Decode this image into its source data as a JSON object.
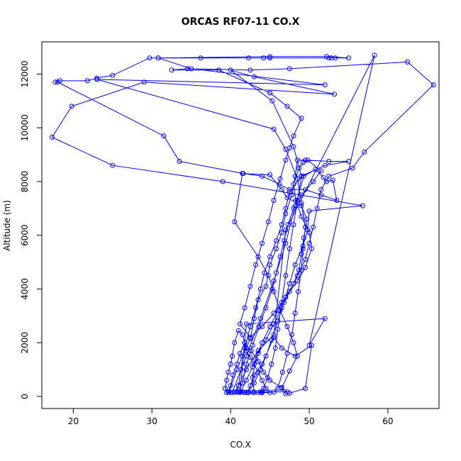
{
  "chart_data": {
    "type": "scatter",
    "title": "ORCAS RF07-11 CO.X",
    "xlabel": "CO.X",
    "ylabel": "Altitude (m)",
    "xlim": [
      16,
      66.5
    ],
    "ylim": [
      -450,
      13200
    ],
    "xticks": [
      20,
      30,
      40,
      50,
      60
    ],
    "yticks": [
      0,
      2000,
      4000,
      6000,
      8000,
      10000,
      12000
    ],
    "grid": false,
    "color": "#0000ff",
    "series": [
      {
        "points": [
          [
            43.5,
            150
          ],
          [
            42.8,
            160
          ],
          [
            42.0,
            150
          ],
          [
            41.5,
            170
          ],
          [
            40.0,
            150
          ],
          [
            39.5,
            140
          ],
          [
            40.5,
            160
          ],
          [
            41.0,
            170
          ],
          [
            42.3,
            150
          ],
          [
            43.0,
            160
          ],
          [
            44.0,
            140
          ],
          [
            45.0,
            150
          ],
          [
            44.5,
            300
          ],
          [
            44.0,
            600
          ],
          [
            43.5,
            900
          ],
          [
            43.0,
            1200
          ],
          [
            42.5,
            1450
          ],
          [
            42.0,
            1700
          ],
          [
            41.8,
            2000
          ],
          [
            41.5,
            2300
          ],
          [
            41.0,
            2450
          ],
          [
            40.5,
            2000
          ],
          [
            40.2,
            1500
          ],
          [
            40.0,
            1200
          ],
          [
            39.7,
            900
          ],
          [
            39.5,
            600
          ],
          [
            39.3,
            300
          ],
          [
            39.8,
            170
          ],
          [
            40.8,
            1000
          ],
          [
            41.5,
            1500
          ],
          [
            42.0,
            1800
          ],
          [
            42.5,
            2150
          ],
          [
            43.0,
            2900
          ],
          [
            43.5,
            3600
          ],
          [
            44.5,
            4100
          ],
          [
            45.0,
            4900
          ],
          [
            45.8,
            5500
          ],
          [
            46.5,
            6100
          ],
          [
            47.0,
            6800
          ],
          [
            47.8,
            7500
          ],
          [
            48.2,
            8200
          ],
          [
            48.5,
            8800
          ],
          [
            49.5,
            8800
          ],
          [
            52.5,
            8750
          ],
          [
            55.0,
            8750
          ],
          [
            52.0,
            8600
          ],
          [
            49.0,
            8200
          ],
          [
            47.5,
            7600
          ],
          [
            47.0,
            7000
          ],
          [
            46.5,
            6400
          ],
          [
            45.8,
            5800
          ],
          [
            45.0,
            5200
          ],
          [
            44.3,
            4600
          ],
          [
            43.8,
            4000
          ],
          [
            43.2,
            3300
          ],
          [
            42.5,
            2600
          ],
          [
            41.8,
            1800
          ],
          [
            41.3,
            1000
          ],
          [
            41.0,
            400
          ],
          [
            40.8,
            170
          ],
          [
            41.3,
            180
          ],
          [
            42.0,
            600
          ],
          [
            42.8,
            1100
          ],
          [
            43.5,
            1600
          ],
          [
            44.5,
            2100
          ],
          [
            45.5,
            2700
          ],
          [
            46.5,
            3300
          ],
          [
            47.5,
            3900
          ],
          [
            48.5,
            4500
          ],
          [
            49.5,
            5100
          ],
          [
            50.0,
            5700
          ],
          [
            50.5,
            6300
          ],
          [
            51.0,
            7000
          ],
          [
            51.5,
            7700
          ],
          [
            52.5,
            8200
          ],
          [
            55.5,
            8500
          ],
          [
            57.0,
            9100
          ],
          [
            65.8,
            11600
          ],
          [
            62.5,
            12450
          ],
          [
            47.5,
            12200
          ],
          [
            42.5,
            12150
          ],
          [
            34.5,
            12200
          ],
          [
            32.5,
            12150
          ],
          [
            38.5,
            12150
          ],
          [
            45.0,
            11300
          ],
          [
            47.2,
            10800
          ],
          [
            49.0,
            10350
          ],
          [
            48.0,
            9700
          ],
          [
            47.5,
            9250
          ],
          [
            47.0,
            8800
          ],
          [
            46.3,
            8100
          ],
          [
            45.5,
            7300
          ],
          [
            44.8,
            6500
          ],
          [
            44.0,
            5700
          ],
          [
            43.2,
            4900
          ],
          [
            42.5,
            4100
          ],
          [
            41.8,
            3300
          ],
          [
            41.2,
            2700
          ],
          [
            42.5,
            2200
          ],
          [
            44.0,
            2600
          ],
          [
            45.5,
            3100
          ],
          [
            47.0,
            3700
          ],
          [
            48.5,
            4300
          ],
          [
            49.5,
            4800
          ],
          [
            50.3,
            5500
          ],
          [
            50.0,
            6100
          ],
          [
            49.0,
            6700
          ],
          [
            48.3,
            7300
          ],
          [
            48.0,
            7900
          ],
          [
            48.7,
            8500
          ],
          [
            49.2,
            8700
          ],
          [
            49.8,
            8800
          ],
          [
            51.5,
            8400
          ],
          [
            50.5,
            8000
          ],
          [
            49.0,
            7500
          ],
          [
            48.0,
            7000
          ],
          [
            47.3,
            6400
          ],
          [
            46.8,
            5800
          ],
          [
            46.3,
            5200
          ],
          [
            45.8,
            4600
          ],
          [
            45.3,
            4000
          ],
          [
            44.5,
            3300
          ],
          [
            43.6,
            2600
          ],
          [
            42.8,
            1900
          ],
          [
            42.0,
            1200
          ],
          [
            41.5,
            500
          ],
          [
            41.0,
            160
          ],
          [
            42.2,
            160
          ],
          [
            43.0,
            500
          ],
          [
            43.8,
            1000
          ],
          [
            44.5,
            1500
          ],
          [
            45.2,
            2100
          ],
          [
            46.0,
            2800
          ],
          [
            46.8,
            3500
          ],
          [
            47.5,
            4200
          ],
          [
            48.2,
            4900
          ],
          [
            49.2,
            5600
          ],
          [
            49.8,
            6200
          ],
          [
            50.0,
            6900
          ],
          [
            56.8,
            7100
          ],
          [
            39.0,
            8000
          ],
          [
            25.0,
            8600
          ],
          [
            17.3,
            9650
          ],
          [
            19.8,
            10800
          ],
          [
            29.0,
            11700
          ],
          [
            53.2,
            11250
          ],
          [
            43.0,
            11900
          ],
          [
            40.0,
            12150
          ],
          [
            45.3,
            11000
          ],
          [
            48.0,
            9300
          ],
          [
            49.0,
            8200
          ],
          [
            48.5,
            7300
          ],
          [
            48.0,
            6400
          ],
          [
            47.5,
            5500
          ],
          [
            47.0,
            4500
          ],
          [
            46.5,
            3500
          ],
          [
            46.0,
            2500
          ],
          [
            45.7,
            1800
          ],
          [
            45.2,
            1200
          ],
          [
            44.7,
            700
          ],
          [
            44.2,
            300
          ],
          [
            43.8,
            160
          ],
          [
            43.0,
            150
          ],
          [
            42.8,
            700
          ],
          [
            43.2,
            1400
          ],
          [
            44.0,
            2000
          ],
          [
            45.0,
            2600
          ],
          [
            46.0,
            3200
          ],
          [
            47.0,
            3700
          ],
          [
            48.0,
            4200
          ],
          [
            48.7,
            4700
          ],
          [
            49.0,
            5300
          ],
          [
            49.3,
            5900
          ],
          [
            49.7,
            6600
          ],
          [
            49.0,
            7100
          ],
          [
            47.2,
            7400
          ],
          [
            46.5,
            7700
          ],
          [
            45.0,
            8250
          ],
          [
            41.5,
            8300
          ],
          [
            40.5,
            6500
          ],
          [
            43.5,
            5200
          ],
          [
            44.8,
            4500
          ],
          [
            45.5,
            3900
          ],
          [
            46.3,
            3200
          ],
          [
            47.2,
            2600
          ],
          [
            48.0,
            2000
          ],
          [
            48.5,
            1500
          ],
          [
            47.5,
            950
          ],
          [
            46.5,
            300
          ],
          [
            47.0,
            100
          ],
          [
            47.5,
            120
          ],
          [
            49.5,
            300
          ],
          [
            50.3,
            1900
          ],
          [
            48.2,
            1500
          ],
          [
            46.5,
            1800
          ],
          [
            45.5,
            2200
          ],
          [
            44.0,
            1200
          ],
          [
            43.0,
            800
          ],
          [
            42.5,
            400
          ],
          [
            42.2,
            150
          ],
          [
            44.0,
            170
          ],
          [
            47.2,
            170
          ],
          [
            46.5,
            330
          ],
          [
            45.0,
            600
          ],
          [
            44.2,
            900
          ],
          [
            43.5,
            1300
          ],
          [
            42.6,
            1700
          ],
          [
            41.8,
            2000
          ],
          [
            41.2,
            1600
          ],
          [
            40.8,
            1200
          ],
          [
            40.3,
            800
          ],
          [
            40.0,
            400
          ],
          [
            39.7,
            170
          ],
          [
            40.2,
            150
          ],
          [
            42.0,
            1500
          ],
          [
            43.8,
            2900
          ],
          [
            45.5,
            4300
          ],
          [
            47.0,
            5700
          ],
          [
            48.2,
            7100
          ],
          [
            49.3,
            8200
          ],
          [
            50.8,
            8450
          ],
          [
            51.8,
            8150
          ],
          [
            52.2,
            8000
          ],
          [
            53.0,
            8050
          ],
          [
            53.5,
            7300
          ],
          [
            51.5,
            7500
          ],
          [
            49.5,
            7700
          ],
          [
            47.5,
            7700
          ],
          [
            46.2,
            7900
          ],
          [
            44.0,
            8200
          ],
          [
            41.6,
            8300
          ],
          [
            33.5,
            8750
          ],
          [
            31.5,
            9700
          ],
          [
            18.0,
            11700
          ],
          [
            17.7,
            11700
          ],
          [
            18.3,
            11750
          ],
          [
            21.8,
            11750
          ],
          [
            23.0,
            11850
          ],
          [
            25.0,
            11950
          ],
          [
            29.7,
            12600
          ],
          [
            30.8,
            12600
          ],
          [
            36.2,
            12600
          ],
          [
            42.3,
            12600
          ],
          [
            44.2,
            12600
          ],
          [
            45.0,
            12600
          ],
          [
            52.5,
            12600
          ],
          [
            52.8,
            12600
          ],
          [
            53.3,
            12600
          ],
          [
            55.0,
            12600
          ],
          [
            52.2,
            12650
          ],
          [
            45.0,
            12650
          ],
          [
            30.8,
            12600
          ],
          [
            35.0,
            12200
          ],
          [
            52.0,
            11600
          ],
          [
            23.0,
            11800
          ],
          [
            45.5,
            9950
          ],
          [
            47.0,
            9200
          ],
          [
            48.5,
            8100
          ],
          [
            49.0,
            7200
          ],
          [
            49.5,
            6300
          ],
          [
            49.2,
            5500
          ],
          [
            49.0,
            4700
          ],
          [
            48.6,
            3900
          ],
          [
            48.2,
            3100
          ],
          [
            47.8,
            2300
          ],
          [
            47.2,
            1600
          ],
          [
            46.6,
            900
          ],
          [
            46.0,
            300
          ],
          [
            45.5,
            160
          ],
          [
            41.7,
            150
          ],
          [
            41.2,
            150
          ],
          [
            42.0,
            2700
          ],
          [
            52.0,
            2900
          ],
          [
            50.0,
            1900
          ],
          [
            58.3,
            12700
          ],
          [
            47.0,
            6200
          ],
          [
            45.5,
            2300
          ],
          [
            43.5,
            1700
          ],
          [
            42.0,
            1000
          ],
          [
            41.0,
            400
          ],
          [
            40.5,
            160
          ]
        ]
      }
    ]
  }
}
